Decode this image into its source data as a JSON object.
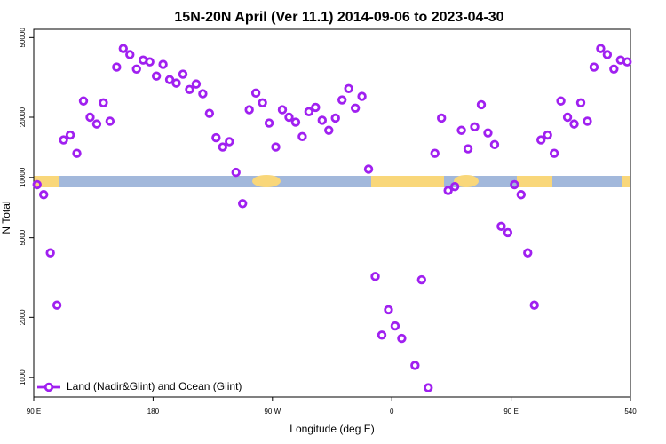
{
  "chart_data": {
    "type": "scatter",
    "title": "15N-20N April (Ver 11.1)   2014-09-06 to 2023-04-30",
    "xlabel": "Longitude (deg E)",
    "ylabel": "N Total",
    "x": [
      92.5,
      97.5,
      102.5,
      107.5,
      112.5,
      117.5,
      122.5,
      127.5,
      132.5,
      137.5,
      142.5,
      147.5,
      152.5,
      157.5,
      162.5,
      167.5,
      172.5,
      177.5,
      182.5,
      187.5,
      192.5,
      197.5,
      202.5,
      207.5,
      212.5,
      217.5,
      222.5,
      227.5,
      232.5,
      237.5,
      242.5,
      247.5,
      252.5,
      257.5,
      262.5,
      267.5,
      272.5,
      277.5,
      282.5,
      287.5,
      292.5,
      297.5,
      302.5,
      307.5,
      312.5,
      317.5,
      322.5,
      327.5,
      332.5,
      337.5,
      342.5,
      347.5,
      352.5,
      357.5,
      362.5,
      367.5,
      372.5,
      377.5,
      382.5,
      387.5,
      392.5,
      397.5,
      402.5,
      407.5,
      412.5,
      417.5,
      422.5,
      427.5,
      432.5,
      437.5,
      442.5,
      447.5,
      452.5,
      457.5,
      462.5,
      467.5,
      472.5,
      477.5,
      482.5,
      487.5,
      492.5,
      497.5,
      502.5,
      507.5,
      512.5,
      517.5,
      522.5,
      527.5,
      532.5,
      537.5
    ],
    "series": [
      {
        "name": "Land (Nadir&Glint) and Ocean (Glint)",
        "color": "#a020f0",
        "values": [
          9200,
          8200,
          4200,
          2300,
          15400,
          16300,
          13200,
          24100,
          20000,
          18500,
          23600,
          19100,
          35600,
          44100,
          41100,
          34800,
          38600,
          37800,
          32100,
          36700,
          30800,
          29600,
          32800,
          27500,
          29300,
          26200,
          20900,
          15800,
          14200,
          15100,
          10600,
          7400,
          21800,
          26400,
          23600,
          18700,
          14200,
          21800,
          20000,
          18900,
          16000,
          21300,
          22400,
          19300,
          17200,
          19800,
          24400,
          27800,
          22200,
          25400,
          11000,
          3200,
          1630,
          2180,
          1810,
          1570,
          null,
          1150,
          3080,
          890,
          13200,
          19800,
          8600,
          9000,
          17200,
          13900,
          17900,
          23100,
          16700,
          14600,
          5700,
          5300,
          9200,
          8200,
          4200,
          2300,
          15400,
          16300,
          13200,
          24100,
          20000,
          18500,
          23600,
          19100,
          35600,
          44100,
          41100,
          34800,
          38600,
          37800
        ]
      }
    ],
    "xlim": [
      90,
      540
    ],
    "xticks": [
      {
        "value": 90,
        "label": "90 E"
      },
      180,
      {
        "value": 270,
        "label": "90 W"
      },
      {
        "value": 360,
        "label": "0"
      },
      {
        "value": 450,
        "label": "90 E"
      },
      540
    ],
    "ylim": [
      800,
      55000
    ],
    "yticks": [
      1000,
      2000,
      5000,
      10000,
      20000,
      50000
    ],
    "log_y": true,
    "grid": false,
    "legend": "bottom-left"
  }
}
